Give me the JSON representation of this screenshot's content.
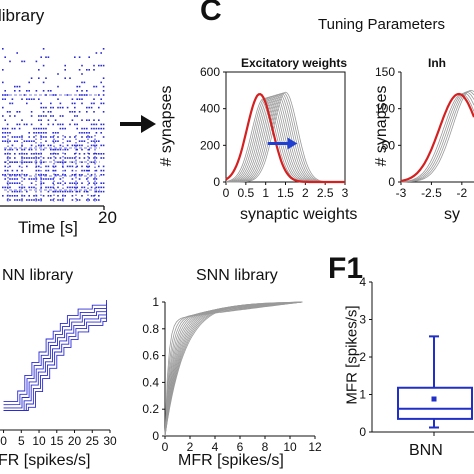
{
  "header": {
    "raster_title": "library",
    "panel_c_letter": "C",
    "tuning_title": "Tuning Parameters",
    "panel_f1_letter": "F1"
  },
  "raster": {
    "xlabel": "Time [s]",
    "x_end_tick": "20",
    "color": "#2b2bd6"
  },
  "arrow_color": "#111111",
  "chart_data": [
    {
      "id": "excitatory",
      "type": "line",
      "title": "Excitatory weights",
      "xlabel": "synaptic weights",
      "ylabel": "# synapses",
      "xlim": [
        0,
        3
      ],
      "ylim": [
        0,
        600
      ],
      "xticks": [
        "0",
        "0.5",
        "1",
        "1.5",
        "2",
        "2.5",
        "3"
      ],
      "yticks": [
        "0",
        "200",
        "400",
        "600"
      ],
      "highlight": {
        "color": "#d62020",
        "peak": 480,
        "mu": 0.85,
        "sigma": 0.32
      },
      "family": {
        "color": "#9a9a9a",
        "count": 12,
        "mu_start": 0.95,
        "mu_end": 1.5,
        "peak_start": 455,
        "peak_end": 490,
        "sigma": 0.3
      },
      "shift_arrow": {
        "from": 1.05,
        "to": 1.8,
        "at_y": 210,
        "color": "#1f3fd0"
      }
    },
    {
      "id": "inhibitory",
      "type": "line",
      "title": "Inh",
      "xlabel": "sy",
      "ylabel": "# synapses",
      "xlim": [
        -3,
        -1.8
      ],
      "ylim": [
        0,
        150
      ],
      "xticks": [
        "-3",
        "-2.5",
        "-2"
      ],
      "yticks": [
        "0",
        "50",
        "100",
        "150"
      ],
      "highlight": {
        "color": "#d62020",
        "peak": 120,
        "mu": -2.05,
        "sigma": 0.32
      },
      "family": {
        "color": "#9a9a9a",
        "count": 5,
        "mu_start": -2.0,
        "mu_end": -1.85,
        "peak_start": 120,
        "peak_end": 125,
        "sigma": 0.3
      }
    },
    {
      "id": "bnn_cdf",
      "type": "line",
      "title": "NN library",
      "xlabel": "FR [spikes/s]",
      "xlim": [
        -1,
        30
      ],
      "ylim": [
        0,
        1
      ],
      "xticks": [
        "0",
        "5",
        "10",
        "15",
        "20",
        "25",
        "30"
      ],
      "yticks": [],
      "color": "#2b2bd6",
      "steps": [
        [
          0,
          0.22
        ],
        [
          4,
          0.3
        ],
        [
          6,
          0.42
        ],
        [
          8,
          0.52
        ],
        [
          10,
          0.6
        ],
        [
          12,
          0.7
        ],
        [
          14,
          0.76
        ],
        [
          16,
          0.82
        ],
        [
          18,
          0.88
        ],
        [
          21,
          0.93
        ],
        [
          25,
          0.96
        ],
        [
          29,
          1.0
        ]
      ]
    },
    {
      "id": "snn_cdf",
      "type": "line",
      "title": "SNN library",
      "xlabel": "MFR [spikes/s]",
      "xlim": [
        0,
        12
      ],
      "ylim": [
        0,
        1
      ],
      "xticks": [
        "0",
        "2",
        "4",
        "6",
        "8",
        "10",
        "12"
      ],
      "yticks": [
        "0",
        "0.2",
        "0.4",
        "0.6",
        "0.8",
        "1"
      ],
      "color": "#9a9a9a",
      "curves": 14
    },
    {
      "id": "f1_box",
      "type": "bar",
      "title": "",
      "categories": [
        "BNN"
      ],
      "ylabel": "MFR [spikes/s]",
      "ylim": [
        0,
        4
      ],
      "yticks": [
        "0",
        "1",
        "2",
        "3",
        "4"
      ],
      "box": {
        "min": 0.12,
        "q1": 0.35,
        "median": 0.62,
        "q3": 1.18,
        "max": 2.55,
        "mean": 0.88
      },
      "color": "#1f2fc8"
    }
  ]
}
